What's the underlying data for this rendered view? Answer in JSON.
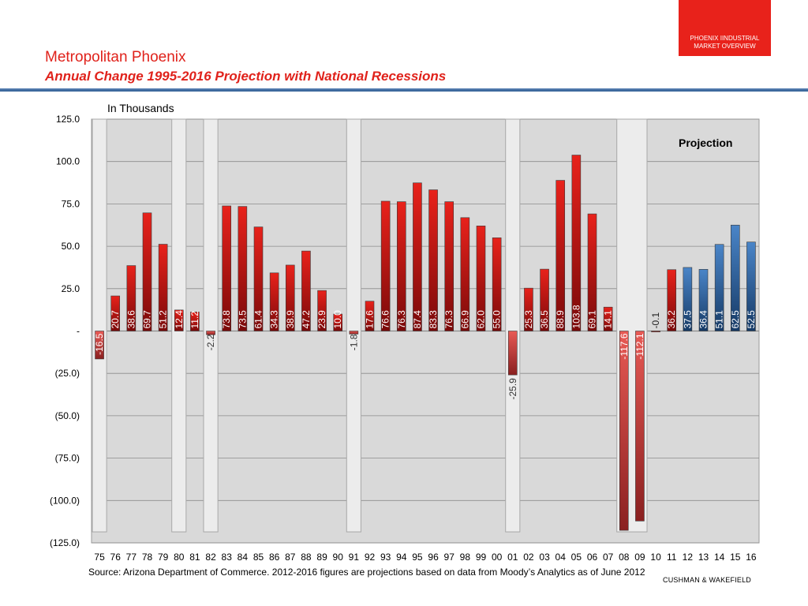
{
  "header": {
    "badge_line1": "PHOENIX IINDUSTRIAL",
    "badge_line2": "MARKET OVERVIEW",
    "title": "Metropolitan Phoenix",
    "subtitle": "Annual Change 1995-2016 Projection with National Recessions"
  },
  "footer": {
    "source": "Source: Arizona Department of Commerce.  2012-2016 figures are projections based on data from Moody’s Analytics as of June 2012",
    "brand": "CUSHMAN & WAKEFIELD"
  },
  "colors": {
    "historical": "#e8221b",
    "historical_dark": "#7a0a0a",
    "decline": "#e85a55",
    "decline_dark": "#8a2020",
    "projection": "#4a85c8",
    "projection_dark": "#163a66",
    "plot_bg": "#d9d9d9",
    "recession_band": "#ececec"
  },
  "chart_data": {
    "type": "bar",
    "ylabel": "In Thousands",
    "ylim": [
      -125,
      125
    ],
    "yticks": [
      125,
      100,
      75,
      50,
      25,
      0,
      -25,
      -50,
      -75,
      -100,
      -125
    ],
    "ytick_labels": [
      "125.0",
      "100.0",
      "75.0",
      "50.0",
      "25.0",
      "-",
      "(25.0)",
      "(50.0)",
      "(75.0)",
      "(100.0)",
      "(125.0)"
    ],
    "grid": true,
    "categories": [
      "75",
      "76",
      "77",
      "78",
      "79",
      "80",
      "81",
      "82",
      "83",
      "84",
      "85",
      "86",
      "87",
      "88",
      "89",
      "90",
      "91",
      "92",
      "93",
      "94",
      "95",
      "96",
      "97",
      "98",
      "99",
      "00",
      "01",
      "02",
      "03",
      "04",
      "05",
      "06",
      "07",
      "08",
      "09",
      "10",
      "11",
      "12",
      "13",
      "14",
      "15",
      "16"
    ],
    "values": [
      -16.5,
      20.7,
      38.6,
      69.7,
      51.2,
      12.4,
      11.2,
      -2.2,
      73.8,
      73.5,
      61.4,
      34.3,
      38.9,
      47.2,
      23.9,
      10.0,
      -1.8,
      17.6,
      76.6,
      76.3,
      87.4,
      83.3,
      76.3,
      66.9,
      62.0,
      55.0,
      -25.9,
      25.3,
      36.5,
      88.9,
      103.8,
      69.1,
      14.1,
      -117.6,
      -112.1,
      -0.1,
      36.2,
      37.5,
      36.4,
      51.1,
      62.5,
      52.5
    ],
    "labels": [
      "-16.5",
      "20.7",
      "38.6",
      "69.7",
      "51.2",
      "12.4",
      "11.2",
      "-2.2",
      "73.8",
      "73.5",
      "61.4",
      "34.3",
      "38.9",
      "47.2",
      "23.9",
      "10.0",
      "-1.8",
      "17.6",
      "76.6",
      "76.3",
      "87.4",
      "83.3",
      "76.3",
      "66.9",
      "62.0",
      "55.0",
      "-25.9",
      "25.3",
      "36.5",
      "88.9",
      "103.8",
      "69.1",
      "14.1",
      "-117.6",
      "-112.1",
      "-0.1",
      "36.2",
      "37.5",
      "36.4",
      "51.1",
      "62.5",
      "52.5"
    ],
    "projection_start_index": 37,
    "recession_bands": [
      {
        "start": "75",
        "end": "75"
      },
      {
        "start": "80",
        "end": "80"
      },
      {
        "start": "82",
        "end": "82"
      },
      {
        "start": "91",
        "end": "91"
      },
      {
        "start": "01",
        "end": "01"
      },
      {
        "start": "08",
        "end": "09"
      }
    ],
    "annotation": "Projection"
  }
}
